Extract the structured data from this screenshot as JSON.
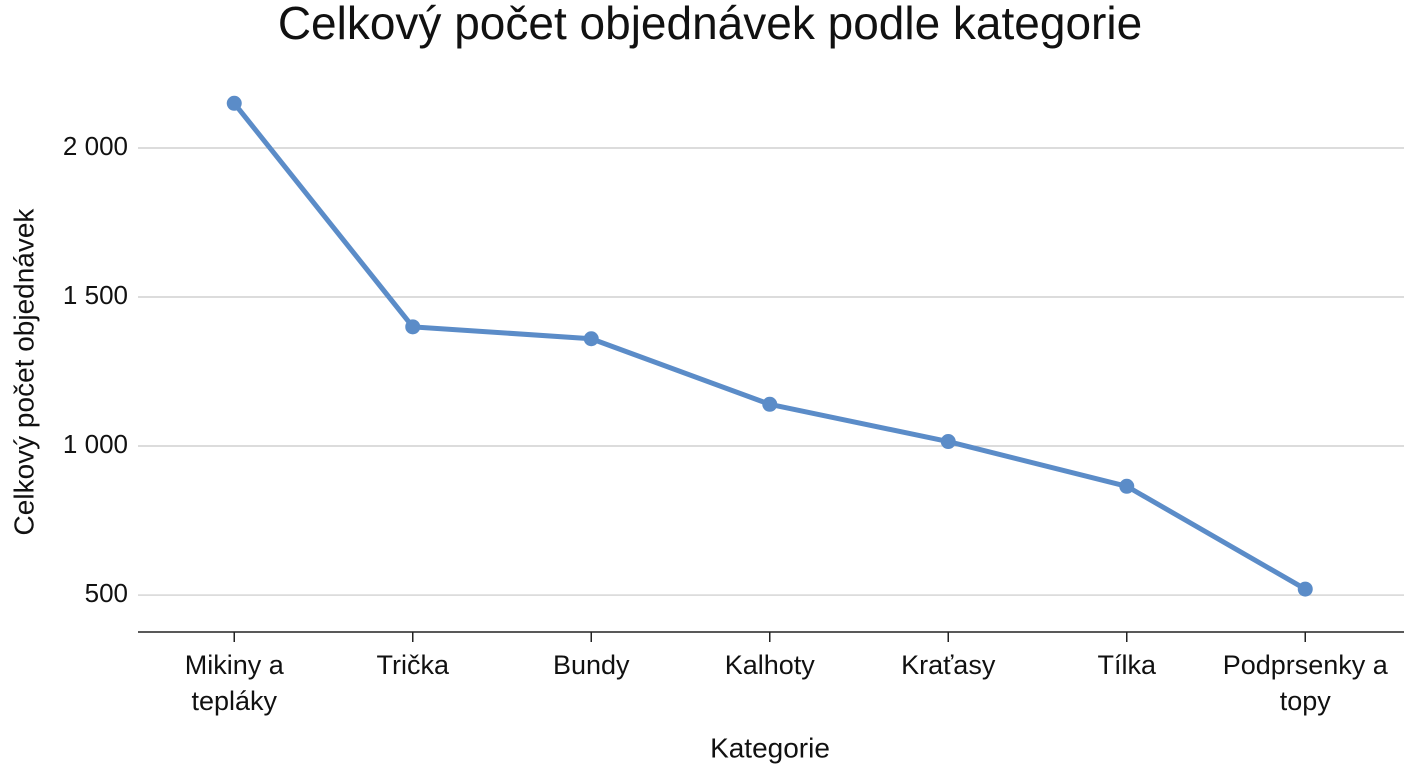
{
  "chart_data": {
    "type": "line",
    "title": "Celkový počet objednávek podle kategorie",
    "x_label": "Kategorie",
    "y_label": "Celkový počet objednávek",
    "categories": [
      "Mikiny a tepláky",
      "Trička",
      "Bundy",
      "Kalhoty",
      "Kraťasy",
      "Tílka",
      "Podprsenky a topy"
    ],
    "series": [
      {
        "name": "Celkový počet objednávek",
        "color": "#5b8cc8",
        "values": [
          2150,
          1400,
          1360,
          1140,
          1015,
          865,
          520
        ]
      }
    ],
    "ylim": [
      376,
      2300
    ],
    "yticks": [
      {
        "value": 500,
        "label": "500"
      },
      {
        "value": 1000,
        "label": "1 000"
      },
      {
        "value": 1500,
        "label": "1 500"
      },
      {
        "value": 2000,
        "label": "2 000"
      }
    ],
    "grid": true
  }
}
